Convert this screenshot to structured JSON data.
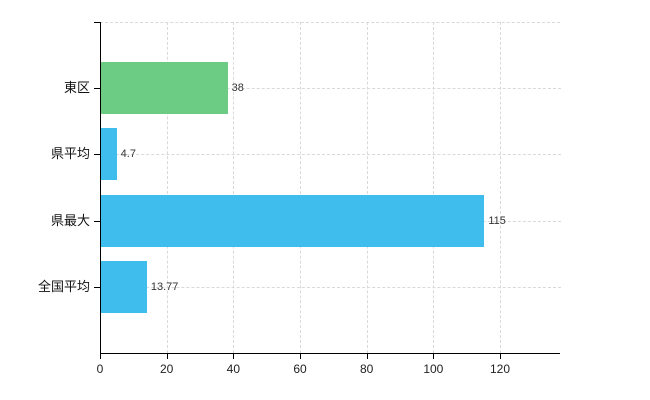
{
  "chart_data": {
    "type": "bar",
    "orientation": "horizontal",
    "title": "",
    "categories": [
      "東区",
      "県平均",
      "県最大",
      "全国平均"
    ],
    "values": [
      38,
      4.7,
      115,
      13.77
    ],
    "value_labels": [
      "38",
      "4.7",
      "115",
      "13.77"
    ],
    "bar_colors": [
      "#6ccc84",
      "#3fbeee",
      "#3fbeee",
      "#3fbeee"
    ],
    "x_ticks": [
      0,
      20,
      40,
      60,
      80,
      100,
      120
    ],
    "xlim": [
      0,
      138
    ],
    "grid": true,
    "legend": false,
    "colors": {
      "grid": "#d9d9d9",
      "axis": "#000000",
      "tick_label": "#222222",
      "value_label": "#333333",
      "category_label": "#111111",
      "bar_green": "#6ccc84",
      "bar_blue": "#3fbeee",
      "background": "#ffffff"
    }
  }
}
